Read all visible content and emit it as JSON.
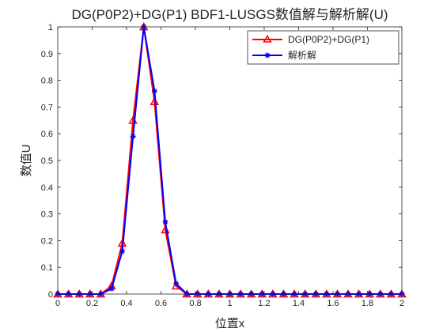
{
  "chart_data": {
    "type": "line",
    "title": "DG(P0P2)+DG(P1) BDF1-LUSGS数值解与解析解(U)",
    "xlabel": "位置x",
    "ylabel": "数值U",
    "xlim": [
      0,
      2
    ],
    "ylim": [
      0,
      1
    ],
    "xticks": [
      "0",
      "0.2",
      "0.4",
      "0.6",
      "0.8",
      "1",
      "1.2",
      "1.4",
      "1.6",
      "1.8",
      "2"
    ],
    "yticks": [
      "0",
      "0.1",
      "0.2",
      "0.3",
      "0.4",
      "0.5",
      "0.6",
      "0.7",
      "0.8",
      "0.9",
      "1"
    ],
    "grid": false,
    "legend_position": "top-right",
    "x": [
      0,
      0.0625,
      0.125,
      0.1875,
      0.25,
      0.3125,
      0.375,
      0.4375,
      0.5,
      0.5625,
      0.625,
      0.6875,
      0.75,
      0.8125,
      0.875,
      0.9375,
      1.0,
      1.0625,
      1.125,
      1.1875,
      1.25,
      1.3125,
      1.375,
      1.4375,
      1.5,
      1.5625,
      1.625,
      1.6875,
      1.75,
      1.8125,
      1.875,
      1.9375,
      2.0
    ],
    "series": [
      {
        "name": "DG(P0P2)+DG(P1)",
        "color": "#ff0000",
        "marker": "triangle",
        "values": [
          0,
          0,
          0,
          0,
          0,
          0.03,
          0.19,
          0.65,
          1.0,
          0.72,
          0.24,
          0.03,
          0,
          0,
          0,
          0,
          0,
          0,
          0,
          0,
          0,
          0,
          0,
          0,
          0,
          0,
          0,
          0,
          0,
          0,
          0,
          0,
          0
        ]
      },
      {
        "name": "解析解",
        "color": "#0000ff",
        "marker": "star",
        "values": [
          0,
          0,
          0,
          0,
          0,
          0.02,
          0.16,
          0.59,
          1.0,
          0.76,
          0.27,
          0.04,
          0,
          0,
          0,
          0,
          0,
          0,
          0,
          0,
          0,
          0,
          0,
          0,
          0,
          0,
          0,
          0,
          0,
          0,
          0,
          0,
          0
        ]
      }
    ]
  }
}
